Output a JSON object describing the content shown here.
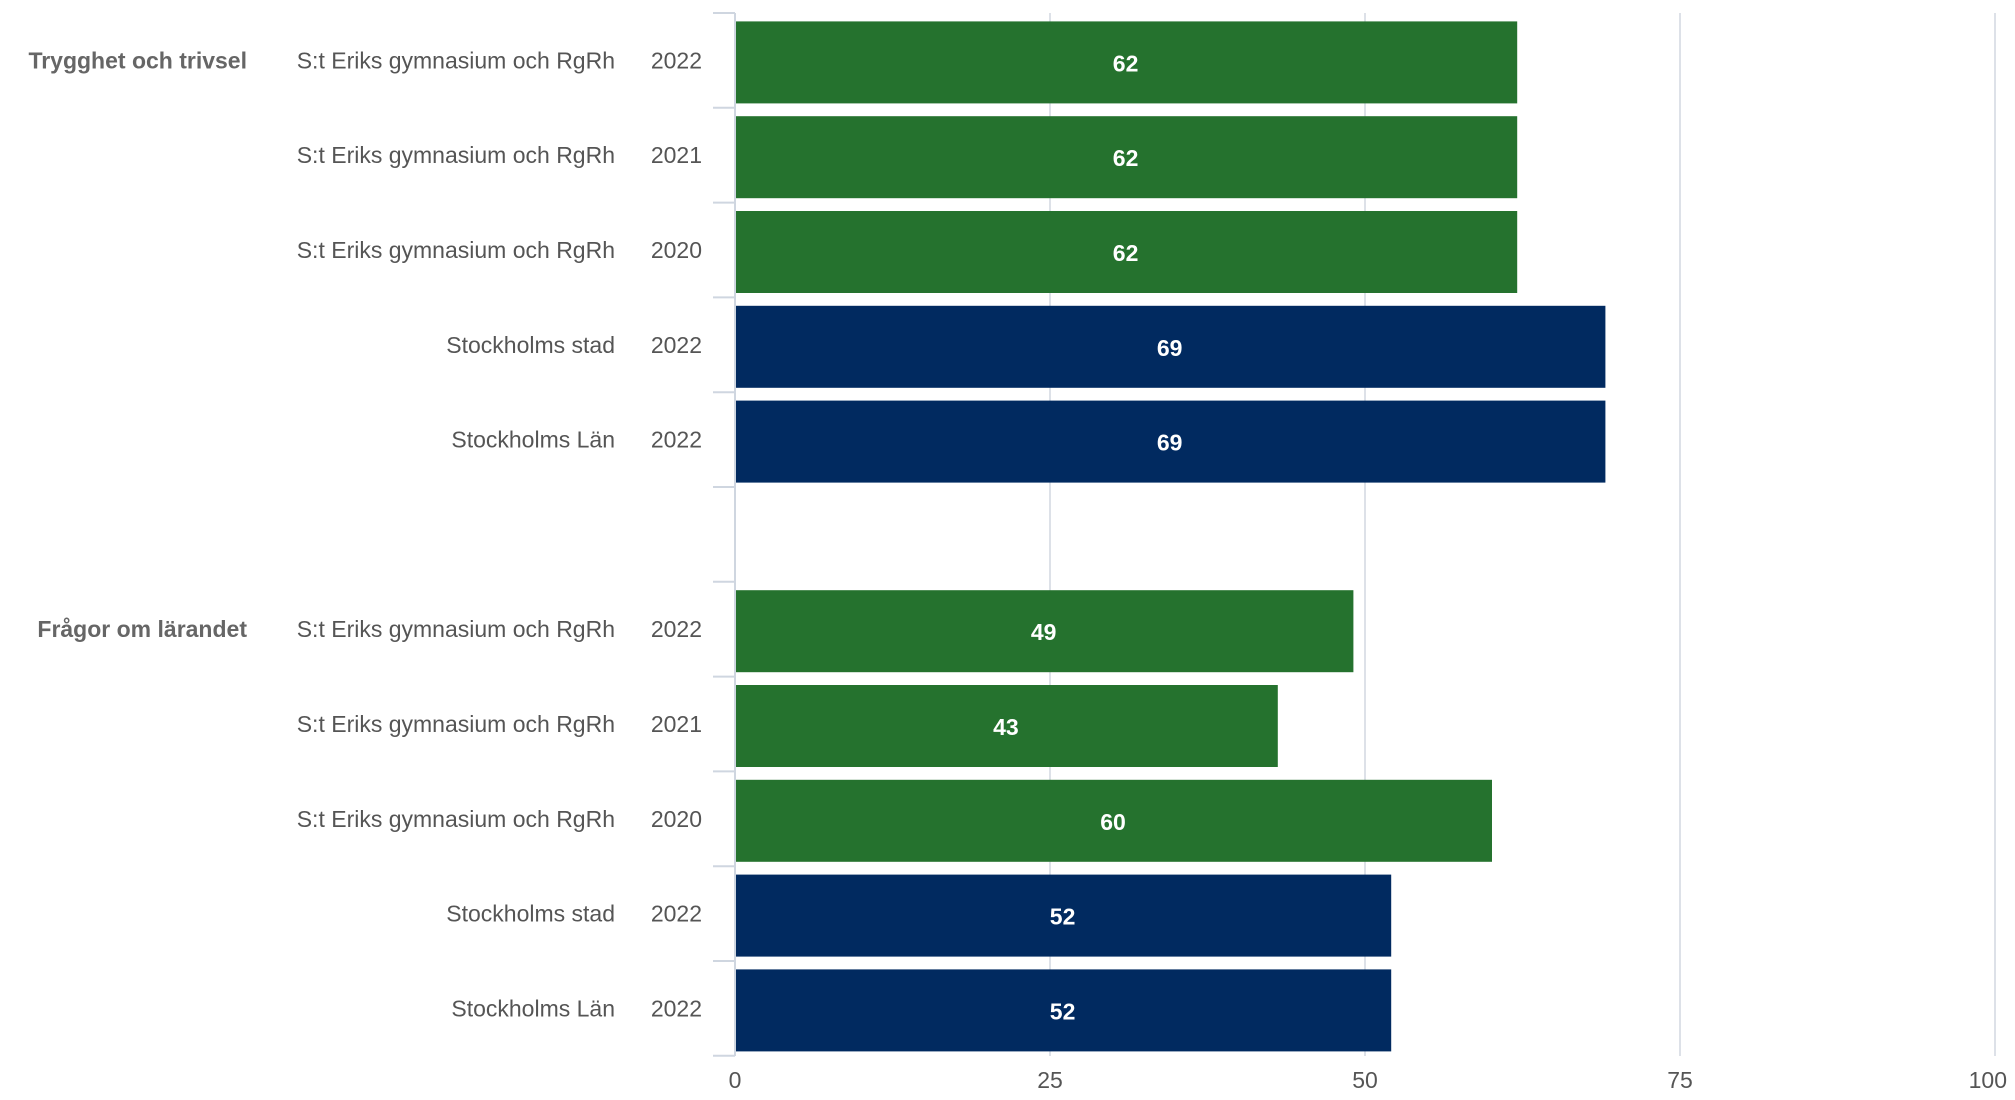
{
  "chart_data": {
    "type": "bar",
    "orientation": "horizontal",
    "xlim": [
      0,
      100
    ],
    "ticks": [
      "0",
      "25",
      "50",
      "75",
      "100"
    ],
    "grid": true,
    "colors": {
      "school": "#25722e",
      "region": "#012a60"
    },
    "groups": [
      {
        "label": "Trygghet och trivsel",
        "rows": [
          {
            "category": "S:t Eriks gymnasium och RgRh",
            "year": "2022",
            "value": 62,
            "color": "school"
          },
          {
            "category": "S:t Eriks gymnasium och RgRh",
            "year": "2021",
            "value": 62,
            "color": "school"
          },
          {
            "category": "S:t Eriks gymnasium och RgRh",
            "year": "2020",
            "value": 62,
            "color": "school"
          },
          {
            "category": "Stockholms stad",
            "year": "2022",
            "value": 69,
            "color": "region"
          },
          {
            "category": "Stockholms Län",
            "year": "2022",
            "value": 69,
            "color": "region"
          }
        ]
      },
      {
        "label": "Frågor om lärandet",
        "rows": [
          {
            "category": "S:t Eriks gymnasium och RgRh",
            "year": "2022",
            "value": 49,
            "color": "school"
          },
          {
            "category": "S:t Eriks gymnasium och RgRh",
            "year": "2021",
            "value": 43,
            "color": "school"
          },
          {
            "category": "S:t Eriks gymnasium och RgRh",
            "year": "2020",
            "value": 60,
            "color": "school"
          },
          {
            "category": "Stockholms stad",
            "year": "2022",
            "value": 52,
            "color": "region"
          },
          {
            "category": "Stockholms Län",
            "year": "2022",
            "value": 52,
            "color": "region"
          }
        ]
      }
    ]
  }
}
